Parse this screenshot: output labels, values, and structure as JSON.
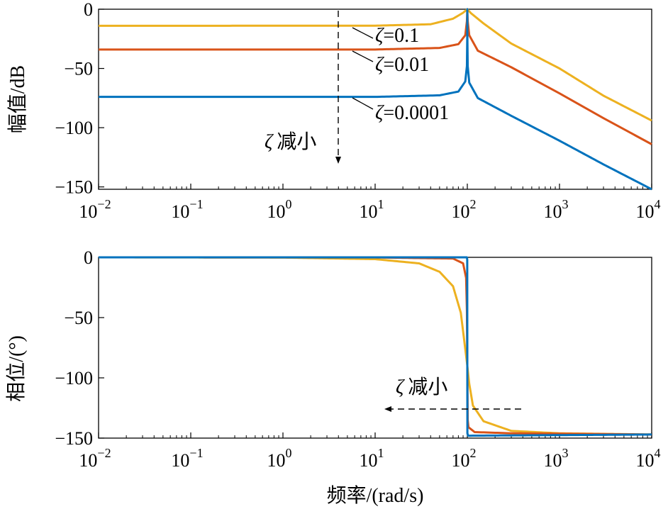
{
  "chart_data": [
    {
      "type": "line",
      "name": "magnitude",
      "xscale": "log",
      "xlim": [
        0.01,
        10000
      ],
      "ylim": [
        -152,
        0
      ],
      "ylabel": "幅值/dB",
      "xlabel": "",
      "grid": false,
      "y_ticks": [
        {
          "value": 0,
          "label": "0"
        },
        {
          "value": -50,
          "label": "−50"
        },
        {
          "value": -100,
          "label": "−100"
        },
        {
          "value": -150,
          "label": "−150"
        }
      ],
      "series": [
        {
          "name": "ζ=0.1",
          "color": "#EDB120",
          "points": [
            [
              0.01,
              -14
            ],
            [
              10,
              -13.9
            ],
            [
              40,
              -12.7
            ],
            [
              70,
              -8
            ],
            [
              90,
              -3
            ],
            [
              100,
              0
            ],
            [
              110,
              -3.5
            ],
            [
              150,
              -12
            ],
            [
              300,
              -29
            ],
            [
              1000,
              -50
            ],
            [
              3000,
              -73
            ],
            [
              10000,
              -94
            ]
          ]
        },
        {
          "name": "ζ=0.01",
          "color": "#D95319",
          "points": [
            [
              0.01,
              -34
            ],
            [
              10,
              -34
            ],
            [
              50,
              -32.7
            ],
            [
              80,
              -29.5
            ],
            [
              95,
              -22
            ],
            [
              99,
              -10
            ],
            [
              100,
              0
            ],
            [
              101,
              -10
            ],
            [
              105,
              -22
            ],
            [
              130,
              -35
            ],
            [
              300,
              -49
            ],
            [
              1000,
              -71
            ],
            [
              3000,
              -92
            ],
            [
              10000,
              -114
            ]
          ]
        },
        {
          "name": "ζ=0.0001",
          "color": "#0072BD",
          "points": [
            [
              0.01,
              -74
            ],
            [
              10,
              -74
            ],
            [
              50,
              -72.7
            ],
            [
              80,
              -69.5
            ],
            [
              95,
              -61
            ],
            [
              99,
              -48
            ],
            [
              99.8,
              -25
            ],
            [
              100,
              0
            ],
            [
              100.2,
              -25
            ],
            [
              101,
              -48
            ],
            [
              105,
              -62
            ],
            [
              130,
              -75
            ],
            [
              300,
              -90
            ],
            [
              1000,
              -111
            ],
            [
              3000,
              -131
            ],
            [
              10000,
              -152
            ]
          ]
        }
      ],
      "annotations": [
        {
          "zeta": "ζ",
          "text": "=0.1"
        },
        {
          "zeta": "ζ",
          "text": "=0.01"
        },
        {
          "zeta": "ζ",
          "text": "=0.0001"
        },
        {
          "zeta": "ζ",
          "text": "减小"
        }
      ]
    },
    {
      "type": "line",
      "name": "phase",
      "xscale": "log",
      "xlim": [
        0.01,
        10000
      ],
      "ylim": [
        -150,
        0
      ],
      "ylabel": "相位/(°)",
      "xlabel": "频率/(rad/s)",
      "grid": false,
      "y_ticks": [
        {
          "value": 0,
          "label": "0"
        },
        {
          "value": -50,
          "label": "−50"
        },
        {
          "value": -100,
          "label": "−100"
        },
        {
          "value": -150,
          "label": "−150"
        }
      ],
      "series": [
        {
          "name": "ζ=0.1",
          "color": "#EDB120",
          "points": [
            [
              0.01,
              0
            ],
            [
              1,
              -0.2
            ],
            [
              10,
              -1.5
            ],
            [
              30,
              -5
            ],
            [
              50,
              -12
            ],
            [
              70,
              -24
            ],
            [
              85,
              -46
            ],
            [
              95,
              -76
            ],
            [
              100,
              -90
            ],
            [
              105,
              -105
            ],
            [
              115,
              -123
            ],
            [
              150,
              -136
            ],
            [
              300,
              -144
            ],
            [
              1000,
              -146
            ],
            [
              10000,
              -147
            ]
          ]
        },
        {
          "name": "ζ=0.01",
          "color": "#D95319",
          "points": [
            [
              0.01,
              0
            ],
            [
              10,
              -0.1
            ],
            [
              70,
              -1
            ],
            [
              90,
              -5
            ],
            [
              97,
              -17
            ],
            [
              99,
              -45
            ],
            [
              100,
              -90
            ],
            [
              101,
              -135
            ],
            [
              103,
              -141
            ],
            [
              120,
              -145
            ],
            [
              300,
              -146
            ],
            [
              10000,
              -147
            ]
          ]
        },
        {
          "name": "ζ=0.0001",
          "color": "#0072BD",
          "points": [
            [
              0.01,
              0
            ],
            [
              99,
              0
            ],
            [
              99.8,
              -2
            ],
            [
              100,
              -90
            ],
            [
              100.2,
              -146
            ],
            [
              102,
              -148
            ],
            [
              10000,
              -147
            ]
          ]
        }
      ],
      "annotations": [
        {
          "zeta": "ζ",
          "text": "减小"
        }
      ]
    }
  ],
  "x_ticks": [
    {
      "base": "10",
      "exp": "−2",
      "value": 0.01
    },
    {
      "base": "10",
      "exp": "−1",
      "value": 0.1
    },
    {
      "base": "10",
      "exp": "0",
      "value": 1
    },
    {
      "base": "10",
      "exp": "1",
      "value": 10
    },
    {
      "base": "10",
      "exp": "2",
      "value": 100
    },
    {
      "base": "10",
      "exp": "3",
      "value": 1000
    },
    {
      "base": "10",
      "exp": "4",
      "value": 10000
    }
  ]
}
